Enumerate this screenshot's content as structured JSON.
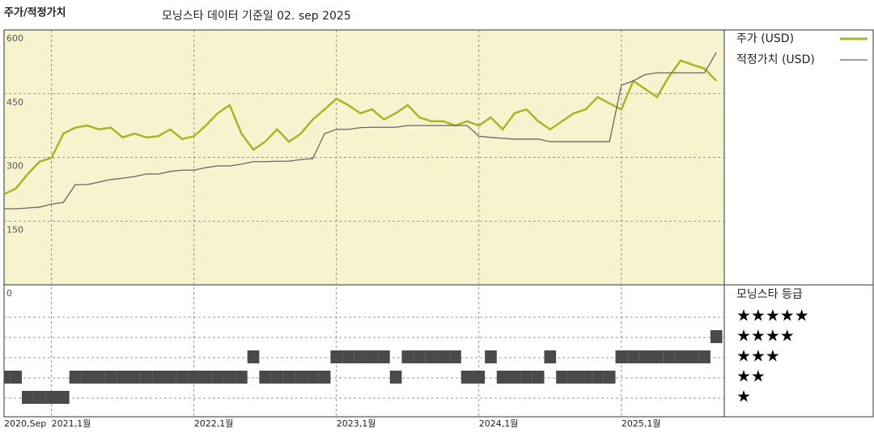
{
  "chart_data": {
    "type": "line",
    "title": "주가/적정가치",
    "subtitle": "모닝스타 데이터 기준일 02. sep 2025",
    "x": [
      "2020-09",
      "2020-10",
      "2020-11",
      "2020-12",
      "2021-01",
      "2021-02",
      "2021-03",
      "2021-04",
      "2021-05",
      "2021-06",
      "2021-07",
      "2021-08",
      "2021-09",
      "2021-10",
      "2021-11",
      "2021-12",
      "2022-01",
      "2022-02",
      "2022-03",
      "2022-04",
      "2022-05",
      "2022-06",
      "2022-07",
      "2022-08",
      "2022-09",
      "2022-10",
      "2022-11",
      "2022-12",
      "2023-01",
      "2023-02",
      "2023-03",
      "2023-04",
      "2023-05",
      "2023-06",
      "2023-07",
      "2023-08",
      "2023-09",
      "2023-10",
      "2023-11",
      "2023-12",
      "2024-01",
      "2024-02",
      "2024-03",
      "2024-04",
      "2024-05",
      "2024-06",
      "2024-07",
      "2024-08",
      "2024-09",
      "2024-10",
      "2024-11",
      "2024-12",
      "2025-01",
      "2025-02",
      "2025-03",
      "2025-04",
      "2025-05",
      "2025-06",
      "2025-07",
      "2025-08",
      "2025-09"
    ],
    "xticks": [
      {
        "value": "2020-09",
        "label": "2020,Sep"
      },
      {
        "value": "2021-01",
        "label": "2021,1월"
      },
      {
        "value": "2022-01",
        "label": "2022,1월"
      },
      {
        "value": "2023-01",
        "label": "2023,1월"
      },
      {
        "value": "2024-01",
        "label": "2024,1월"
      },
      {
        "value": "2025-01",
        "label": "2025,1월"
      }
    ],
    "ylim": [
      0,
      600
    ],
    "yticks": [
      0,
      150,
      300,
      450,
      600
    ],
    "grid": true,
    "series": [
      {
        "name": "주가 (USD)",
        "color": "#a9b524",
        "values": [
          213,
          227,
          261,
          290,
          299,
          356,
          370,
          375,
          366,
          370,
          347,
          356,
          347,
          350,
          366,
          343,
          350,
          375,
          404,
          423,
          356,
          318,
          337,
          366,
          337,
          356,
          389,
          413,
          438,
          423,
          404,
          413,
          389,
          404,
          423,
          394,
          385,
          385,
          375,
          385,
          375,
          394,
          366,
          404,
          413,
          385,
          366,
          385,
          404,
          413,
          442,
          427,
          413,
          480,
          461,
          442,
          490,
          528,
          518,
          509,
          480
        ]
      },
      {
        "name": "적정가치 (USD)",
        "color": "#666666",
        "values": [
          179,
          179,
          181,
          183,
          190,
          194,
          236,
          236,
          242,
          248,
          251,
          255,
          261,
          261,
          267,
          270,
          270,
          276,
          280,
          280,
          284,
          290,
          290,
          291,
          291,
          295,
          297,
          356,
          366,
          366,
          370,
          371,
          371,
          371,
          375,
          375,
          375,
          375,
          375,
          375,
          350,
          347,
          345,
          343,
          343,
          343,
          337,
          337,
          337,
          337,
          337,
          337,
          470,
          480,
          495,
          499,
          499,
          499,
          499,
          499,
          547
        ]
      }
    ],
    "rating": {
      "title": "모닝스타 등급",
      "labels": [
        "★",
        "★★",
        "★★★",
        "★★★★",
        "★★★★★"
      ],
      "values": [
        2,
        2,
        1,
        1,
        1,
        1,
        2,
        2,
        2,
        2,
        2,
        2,
        2,
        2,
        2,
        2,
        2,
        2,
        2,
        2,
        2,
        3,
        2,
        2,
        2,
        2,
        2,
        2,
        3,
        3,
        3,
        3,
        3,
        2,
        3,
        3,
        3,
        3,
        3,
        2,
        2,
        3,
        2,
        2,
        2,
        2,
        3,
        2,
        2,
        2,
        2,
        2,
        3,
        3,
        3,
        3,
        3,
        3,
        3,
        3,
        4
      ]
    }
  }
}
